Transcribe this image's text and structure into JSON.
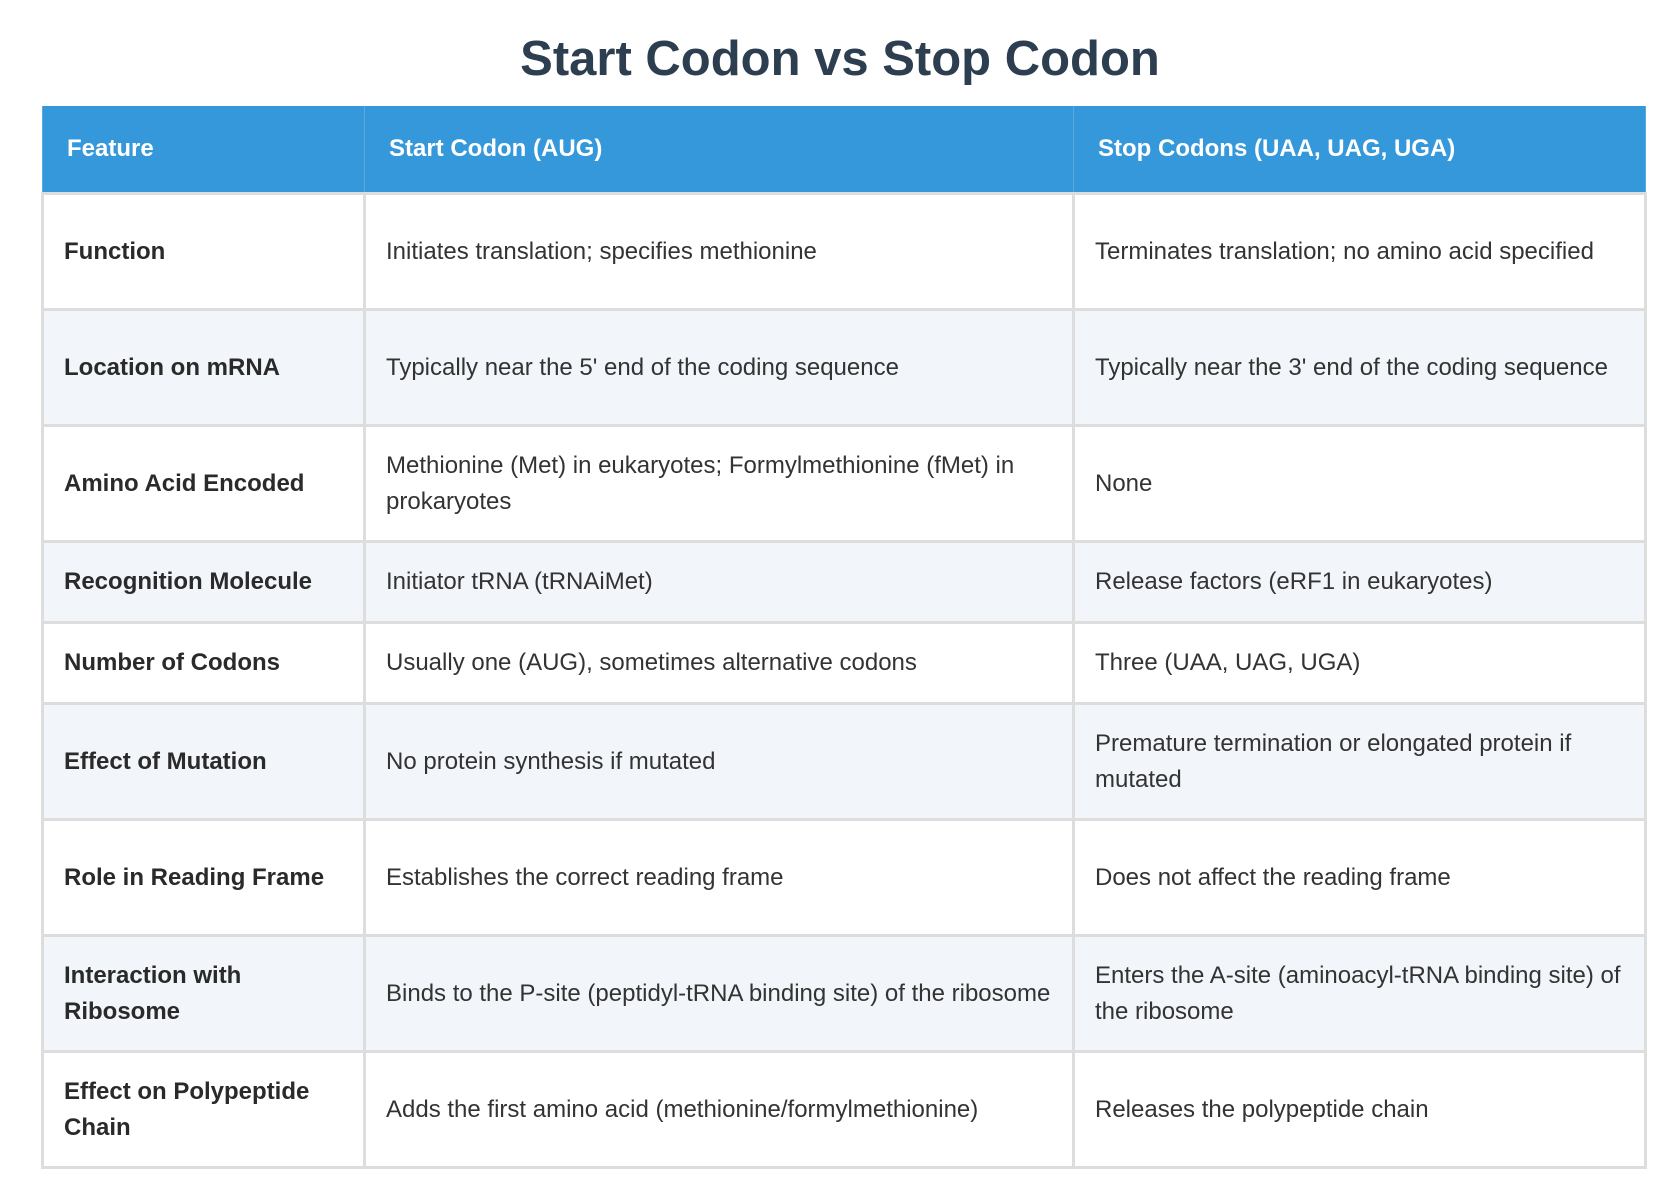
{
  "title": "Start Codon vs Stop Codon",
  "table": {
    "headers": [
      "Feature",
      "Start Codon (AUG)",
      "Stop Codons (UAA, UAG, UGA)"
    ],
    "rows": [
      [
        "Function",
        "Initiates translation; specifies methionine",
        "Terminates translation; no amino acid specified"
      ],
      [
        "Location on mRNA",
        "Typically near the 5' end of the coding sequence",
        "Typically near the 3' end of the coding sequence"
      ],
      [
        "Amino Acid Encoded",
        "Methionine (Met) in eukaryotes; Formylmethionine (fMet) in prokaryotes",
        "None"
      ],
      [
        "Recognition Molecule",
        "Initiator tRNA (tRNAiMet)",
        "Release factors (eRF1 in eukaryotes)"
      ],
      [
        "Number of Codons",
        "Usually one (AUG), sometimes alternative codons",
        "Three (UAA, UAG, UGA)"
      ],
      [
        "Effect of Mutation",
        "No protein synthesis if mutated",
        "Premature termination or elongated protein if mutated"
      ],
      [
        "Role in Reading Frame",
        "Establishes the correct reading frame",
        "Does not affect the reading frame"
      ],
      [
        "Interaction with Ribosome",
        "Binds to the P-site (peptidyl-tRNA binding site) of the ribosome",
        "Enters the A-site (aminoacyl-tRNA binding site) of the ribosome"
      ],
      [
        "Effect on Polypeptide Chain",
        "Adds the first amino acid (methionine/formylmethionine)",
        "Releases the polypeptide chain"
      ]
    ]
  },
  "colors": {
    "title": "#2c3e50",
    "header_bg": "#3498db",
    "header_text": "#ffffff",
    "row_alt_bg": "#f2f5f9",
    "border": "#dddddd"
  }
}
